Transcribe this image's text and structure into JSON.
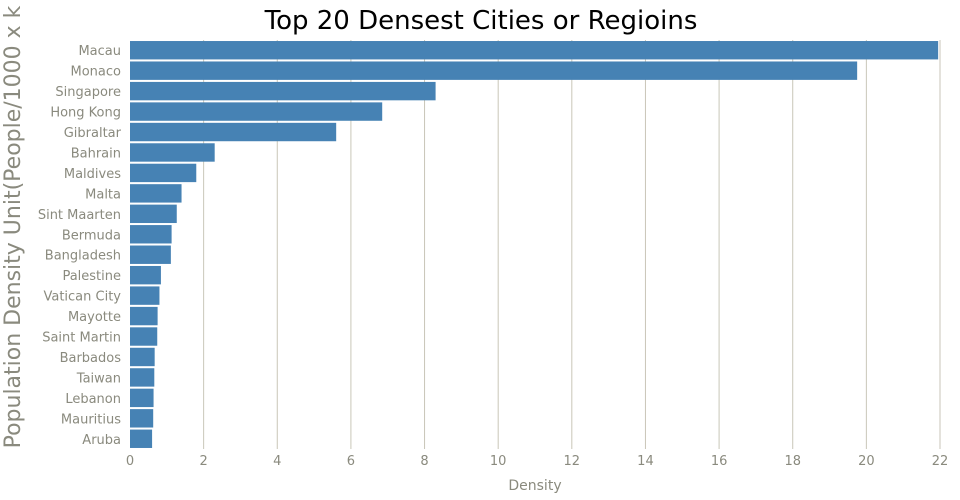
{
  "chart_data": {
    "type": "bar",
    "orientation": "horizontal",
    "title": "Top 20 Densest Cities or Regioins",
    "xlabel": "Density",
    "ylabel": "Population Density Unit(People/1000 x k",
    "xlim": [
      0,
      22
    ],
    "x_ticks": [
      "0",
      "2",
      "4",
      "6",
      "8",
      "10",
      "12",
      "14",
      "16",
      "18",
      "20",
      "22"
    ],
    "grid": true,
    "legend": "none",
    "bar_color": "#4682b4",
    "categories": [
      "Macau",
      "Monaco",
      "Singapore",
      "Hong Kong",
      "Gibraltar",
      "Bahrain",
      "Maldives",
      "Malta",
      "Sint Maarten",
      "Bermuda",
      "Bangladesh",
      "Palestine",
      "Vatican City",
      "Mayotte",
      "Saint Martin",
      "Barbados",
      "Taiwan",
      "Lebanon",
      "Mauritius",
      "Aruba"
    ],
    "values": [
      21.95,
      19.75,
      8.3,
      6.85,
      5.6,
      2.3,
      1.8,
      1.4,
      1.27,
      1.13,
      1.11,
      0.84,
      0.8,
      0.75,
      0.74,
      0.67,
      0.66,
      0.64,
      0.63,
      0.6
    ]
  }
}
